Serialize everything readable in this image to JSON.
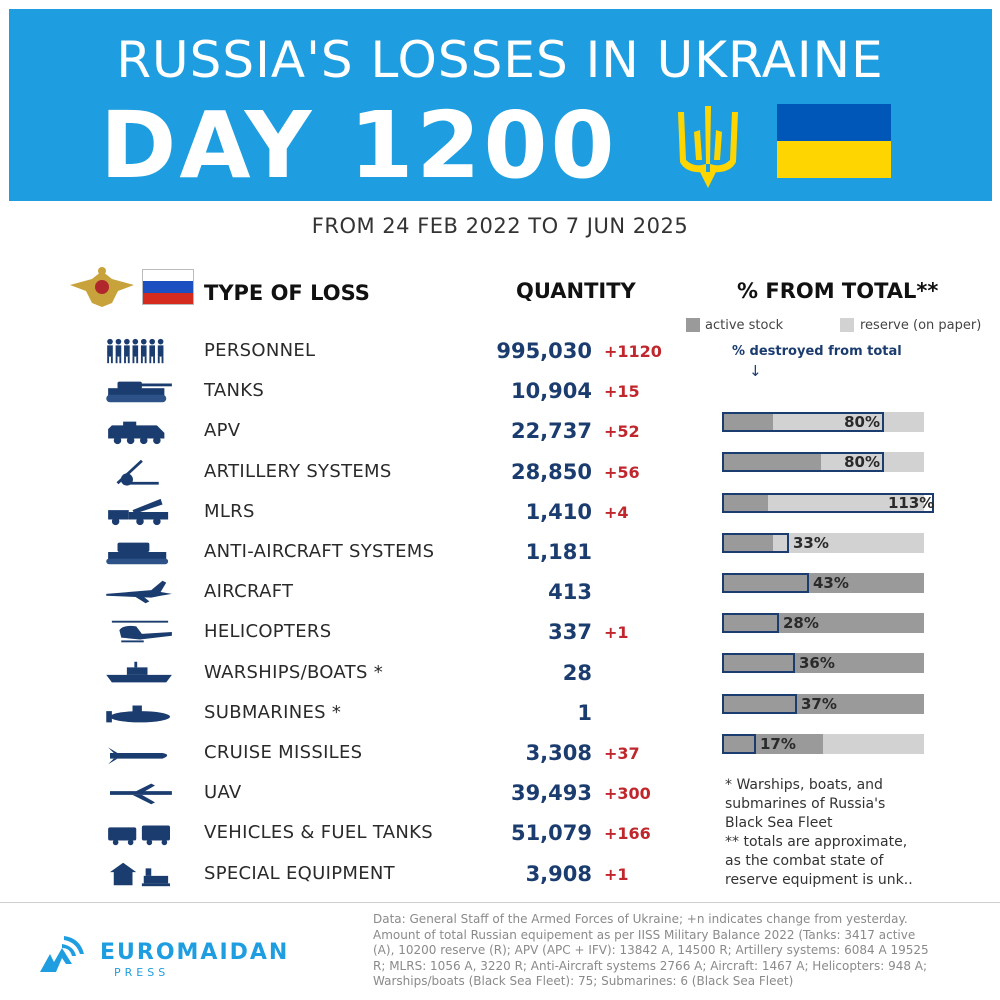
{
  "header": {
    "title": "RUSSIA'S LOSSES IN UKRAINE",
    "day": "DAY 1200",
    "dates": "FROM 24 FEB 2022 TO 7 JUN 2025"
  },
  "table_header": {
    "type": "TYPE OF LOSS",
    "quantity": "QUANTITY",
    "percent": "% FROM TOTAL**"
  },
  "legend": {
    "active": "active stock",
    "reserve": "reserve (on paper)",
    "destroyed": "% destroyed from total",
    "arrow": "↓"
  },
  "colors": {
    "banner": "#1e9ee0",
    "active": "#9a9a9a",
    "reserve": "#d2d2d2",
    "outline": "#1b3c6e",
    "quantity": "#1b3c6e",
    "delta": "#c0272d",
    "ua_blue": "#0057b8",
    "ua_yellow": "#ffd500"
  },
  "rows": [
    {
      "label": "PERSONNEL",
      "quantity": "995,030",
      "delta": "+1120",
      "icon": "soldiers-icon"
    },
    {
      "label": "TANKS",
      "quantity": "10,904",
      "delta": "+15",
      "icon": "tank-icon",
      "bar": {
        "active": 0.25,
        "destroyed": 0.8,
        "pct": "80%"
      }
    },
    {
      "label": "APV",
      "quantity": "22,737",
      "delta": "+52",
      "icon": "apv-icon",
      "bar": {
        "active": 0.49,
        "destroyed": 0.8,
        "pct": "80%"
      }
    },
    {
      "label": "ARTILLERY SYSTEMS",
      "quantity": "28,850",
      "delta": "+56",
      "icon": "artillery-icon",
      "bar": {
        "active": 0.23,
        "destroyed": 1.13,
        "pct": "113%"
      }
    },
    {
      "label": "MLRS",
      "quantity": "1,410",
      "delta": "+4",
      "icon": "mlrs-icon",
      "bar": {
        "active": 0.25,
        "destroyed": 0.33,
        "pct": "33%"
      }
    },
    {
      "label": "ANTI-AIRCRAFT SYSTEMS",
      "quantity": "1,181",
      "delta": "",
      "icon": "anti-aircraft-icon",
      "bar": {
        "active": 1.0,
        "destroyed": 0.43,
        "pct": "43%"
      }
    },
    {
      "label": "AIRCRAFT",
      "quantity": "413",
      "delta": "",
      "icon": "aircraft-icon",
      "bar": {
        "active": 1.0,
        "destroyed": 0.28,
        "pct": "28%"
      }
    },
    {
      "label": "HELICOPTERS",
      "quantity": "337",
      "delta": "+1",
      "icon": "helicopter-icon",
      "bar": {
        "active": 1.0,
        "destroyed": 0.36,
        "pct": "36%"
      }
    },
    {
      "label": "WARSHIPS/BOATS *",
      "quantity": "28",
      "delta": "",
      "icon": "warship-icon",
      "bar": {
        "active": 1.0,
        "destroyed": 0.37,
        "pct": "37%"
      }
    },
    {
      "label": "SUBMARINES *",
      "quantity": "1",
      "delta": "",
      "icon": "submarine-icon",
      "bar": {
        "active": 0.5,
        "destroyed": 0.17,
        "pct": "17%"
      }
    },
    {
      "label": "CRUISE MISSILES",
      "quantity": "3,308",
      "delta": "+37",
      "icon": "missile-icon"
    },
    {
      "label": "UAV",
      "quantity": "39,493",
      "delta": "+300",
      "icon": "uav-icon"
    },
    {
      "label": "VEHICLES & FUEL TANKS",
      "quantity": "51,079",
      "delta": "+166",
      "icon": "vehicles-icon"
    },
    {
      "label": "SPECIAL EQUIPMENT",
      "quantity": "3,908",
      "delta": "+1",
      "icon": "special-equipment-icon"
    }
  ],
  "notes": [
    "* Warships, boats, and",
    "submarines of Russia's",
    "Black Sea Fleet",
    "** totals are approximate,",
    "as the combat state of",
    "reserve equipment is unk.."
  ],
  "source": [
    "Data: General Staff of the Armed Forces of Ukraine; +n indicates change from yesterday.",
    "Amount of total Russian equipement as per IISS Military Balance 2022 (Tanks: 3417 active",
    "(A), 10200 reserve (R); APV (APC + IFV): 13842 A, 14500 R; Artillery systems: 6084 A 19525",
    "R; MLRS: 1056 A, 3220 R; Anti-Aircraft systems 2766 A; Aircraft: 1467 A; Helicopters: 948 A;",
    "Warships/boats (Black Sea Fleet): 75; Submarines: 6 (Black Sea Fleet)"
  ],
  "logo": {
    "name": "EUROMAIDAN",
    "sub": "PRESS"
  }
}
